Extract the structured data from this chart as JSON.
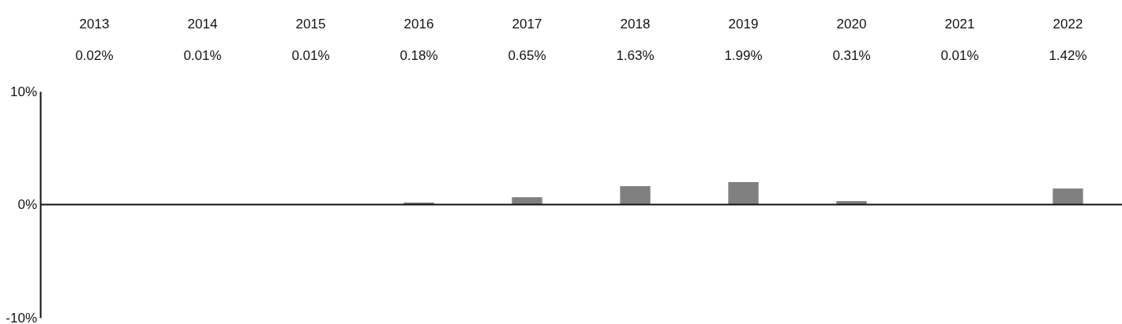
{
  "chart_data": {
    "type": "bar",
    "categories": [
      "2013",
      "2014",
      "2015",
      "2016",
      "2017",
      "2018",
      "2019",
      "2020",
      "2021",
      "2022"
    ],
    "values": [
      0.02,
      0.01,
      0.01,
      0.18,
      0.65,
      1.63,
      1.99,
      0.31,
      0.01,
      1.42
    ],
    "value_labels": [
      "0.02%",
      "0.01%",
      "0.01%",
      "0.18%",
      "0.65%",
      "1.63%",
      "1.99%",
      "0.31%",
      "0.01%",
      "1.42%"
    ],
    "color": "#808080",
    "ylim": [
      -10,
      10
    ],
    "yticks": [
      {
        "value": -10,
        "label": "-10%"
      },
      {
        "value": 0,
        "label": "0%"
      },
      {
        "value": 10,
        "label": "10%"
      }
    ]
  }
}
